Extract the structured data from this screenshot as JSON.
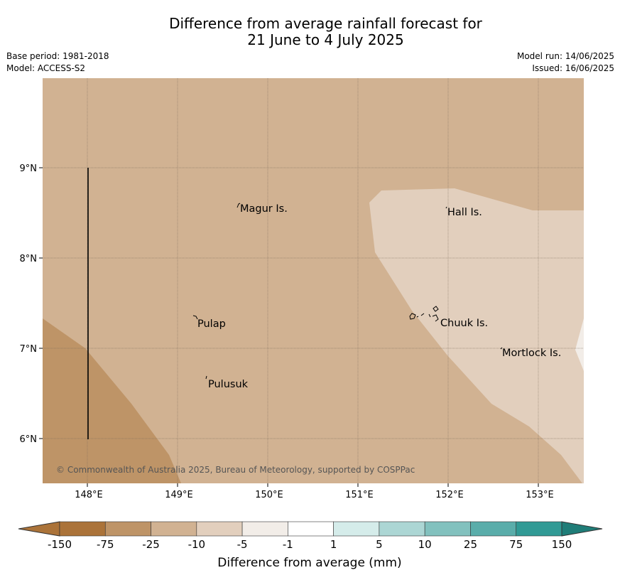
{
  "title_line1": "Difference from average rainfall forecast for",
  "title_line2": "21 June to 4 July 2025",
  "meta": {
    "base_period": "Base period: 1981-2018",
    "model": "Model: ACCESS-S2",
    "model_run": "Model run: 14/06/2025",
    "issued": "Issued: 16/06/2025"
  },
  "map": {
    "lon_ticks": [
      "148°E",
      "149°E",
      "150°E",
      "151°E",
      "152°E",
      "153°E"
    ],
    "lat_ticks": [
      "9°N",
      "8°N",
      "7°N",
      "6°N"
    ],
    "places": [
      "Magur Is.",
      "Hall Is.",
      "Pulap",
      "Chuuk Is.",
      "Mortlock Is.",
      "Pulusuk"
    ],
    "copyright": "© Commonwealth of Australia 2025, Bureau of Meteorology, supported by COSPPac"
  },
  "colorbar": {
    "labels": [
      "-150",
      "-75",
      "-25",
      "-10",
      "-5",
      "-1",
      "1",
      "5",
      "10",
      "25",
      "75",
      "150"
    ],
    "colors": [
      "#ab7339",
      "#be9467",
      "#d1b292",
      "#e2cfbd",
      "#f2ede8",
      "#ffffff",
      "#d5ecea",
      "#acd6d4",
      "#82c1be",
      "#5aadaa",
      "#319a95",
      "#1f7d78"
    ],
    "title": "Difference from average (mm)"
  }
}
